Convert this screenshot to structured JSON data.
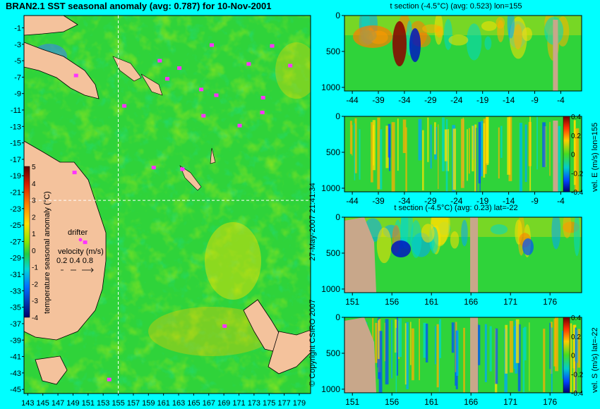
{
  "main_title": "BRAN2.1 SST seasonal anomaly (avg: 0.787) for 10-Nov-2001",
  "colors": {
    "background": "#00ffff",
    "land": "#f4c29c",
    "section_land": "#c8a78a",
    "field": "#2fd33a",
    "drifter": "#ff33ff",
    "crosshair": "#ffffff"
  },
  "copyright": "© Copyright CSIRO 2007",
  "timestamp": "27-May-2007 21:41:34",
  "chart_data": [
    {
      "id": "map",
      "type": "heatmap",
      "title": "BRAN2.1 SST seasonal anomaly (avg: 0.787) for 10-Nov-2001",
      "xticks": [
        "143",
        "145",
        "147",
        "149",
        "151",
        "153",
        "155",
        "157",
        "159",
        "161",
        "163",
        "165",
        "167",
        "169",
        "171",
        "173",
        "175",
        "177",
        "179"
      ],
      "yticks": [
        "-1",
        "-3",
        "-5",
        "-7",
        "-9",
        "-11",
        "-13",
        "-15",
        "-17",
        "-19",
        "-21",
        "-23",
        "-25",
        "-27",
        "-29",
        "-31",
        "-33",
        "-35",
        "-37",
        "-39",
        "-41",
        "-43",
        "-45"
      ],
      "xlim": [
        142.5,
        180.5
      ],
      "ylim": [
        -45.5,
        0.5
      ],
      "crosshair": {
        "lon": 155,
        "lat": -22
      },
      "colorbar": {
        "label": "temperature seasonal anomaly (°C)",
        "ticks": [
          "5",
          "4",
          "3",
          "2",
          "1",
          "0",
          "-1",
          "-2",
          "-3",
          "-4"
        ],
        "range": [
          -4,
          5
        ]
      },
      "legend": {
        "drifter_label": "drifter",
        "velocity_label": "velocity (m/s)",
        "velocity_values": "0.2 0.4 0.8"
      },
      "drifters": [
        {
          "lon": 149.4,
          "lat": -6.8
        },
        {
          "lon": 155.8,
          "lat": -10.5
        },
        {
          "lon": 160.5,
          "lat": -5.0
        },
        {
          "lon": 163.1,
          "lat": -5.9
        },
        {
          "lon": 167.4,
          "lat": -3.1
        },
        {
          "lon": 172.3,
          "lat": -5.4
        },
        {
          "lon": 175.4,
          "lat": -3.2
        },
        {
          "lon": 177.8,
          "lat": -5.6
        },
        {
          "lon": 174.2,
          "lat": -9.5
        },
        {
          "lon": 161.5,
          "lat": -7.2
        },
        {
          "lon": 166.0,
          "lat": -8.5
        },
        {
          "lon": 168.0,
          "lat": -9.2
        },
        {
          "lon": 174.1,
          "lat": -11.3
        },
        {
          "lon": 166.3,
          "lat": -11.7
        },
        {
          "lon": 171.1,
          "lat": -12.9
        },
        {
          "lon": 163.5,
          "lat": -18.2
        },
        {
          "lon": 159.7,
          "lat": -18.0
        },
        {
          "lon": 149.2,
          "lat": -18.6
        },
        {
          "lon": 150.6,
          "lat": -27.1
        },
        {
          "lon": 169.1,
          "lat": -37.3
        },
        {
          "lon": 153.8,
          "lat": -43.8
        }
      ]
    },
    {
      "id": "tsection_lon",
      "type": "heatmap",
      "title": "t section (-4.5°C) (avg: 0.523) lon=155",
      "xticks": [
        "-44",
        "-39",
        "-34",
        "-29",
        "-24",
        "-19",
        "-14",
        "-9",
        "-4"
      ],
      "yticks": [
        "0",
        "500",
        "1000"
      ],
      "xlim": [
        -45.5,
        0
      ],
      "ylim": [
        1050,
        0
      ]
    },
    {
      "id": "vel_e",
      "type": "heatmap",
      "title": "",
      "xticks": [
        "-44",
        "-39",
        "-34",
        "-29",
        "-24",
        "-19",
        "-14",
        "-9",
        "-4"
      ],
      "yticks": [
        "0",
        "500",
        "1000"
      ],
      "xlim": [
        -45.5,
        0
      ],
      "ylim": [
        1050,
        0
      ],
      "colorbar": {
        "label": "vel. E (m/s) lon=155",
        "ticks": [
          "0.4",
          "0.2",
          "0",
          "-0.2",
          "-0.4"
        ],
        "range": [
          -0.4,
          0.4
        ]
      }
    },
    {
      "id": "tsection_lat",
      "type": "heatmap",
      "title": "t section (-4.5°C) (avg: 0.23) lat=-22",
      "xticks": [
        "151",
        "156",
        "161",
        "166",
        "171",
        "176"
      ],
      "yticks": [
        "0",
        "500",
        "1000"
      ],
      "xlim": [
        150,
        180
      ],
      "ylim": [
        1050,
        0
      ]
    },
    {
      "id": "vel_s",
      "type": "heatmap",
      "title": "",
      "xticks": [
        "151",
        "156",
        "161",
        "166",
        "171",
        "176"
      ],
      "yticks": [
        "0",
        "500",
        "1000"
      ],
      "xlim": [
        150,
        180
      ],
      "ylim": [
        1050,
        0
      ],
      "colorbar": {
        "label": "vel. S (m/s) lat=-22",
        "ticks": [
          "0.4",
          "0.2",
          "0",
          "-0.2",
          "-0.4"
        ],
        "range": [
          -0.4,
          0.4
        ]
      }
    }
  ]
}
